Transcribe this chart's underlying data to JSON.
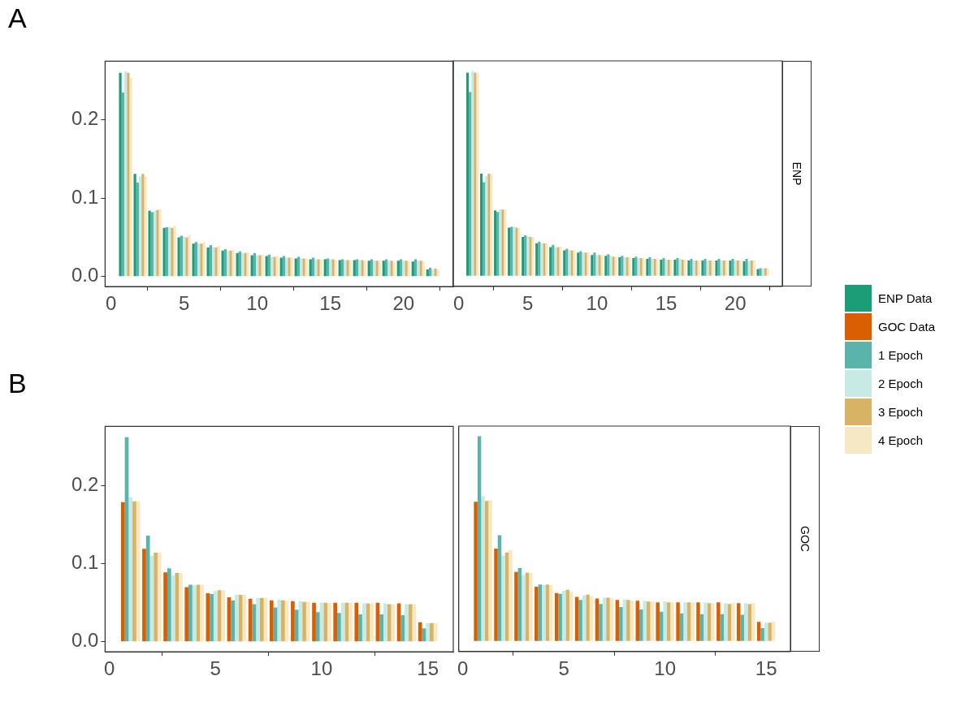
{
  "chart_data": [
    {
      "type": "bar",
      "annotations": [
        "A"
      ],
      "legend": "right",
      "x": [
        1,
        2,
        3,
        4,
        5,
        6,
        7,
        8,
        9,
        10,
        11,
        12,
        13,
        14,
        15,
        16,
        17,
        18,
        19,
        20,
        21,
        22
      ],
      "xlim": [
        -0.4,
        23.4
      ],
      "xticks": [
        0,
        5,
        10,
        15,
        20
      ],
      "ylim": [
        -0.013,
        0.275
      ],
      "yticks": [
        {
          "value": 0,
          "label": "0.0"
        },
        {
          "value": 0.1,
          "label": "0.1"
        },
        {
          "value": 0.2,
          "label": "0.2"
        }
      ],
      "grid": false,
      "series": [
        {
          "name": "ENP Data",
          "color": "#1b9e77",
          "values": [
            0.26,
            0.131,
            0.084,
            0.062,
            0.05,
            0.042,
            0.037,
            0.033,
            0.03,
            0.027,
            0.026,
            0.024,
            0.023,
            0.022,
            0.022,
            0.021,
            0.021,
            0.02,
            0.02,
            0.02,
            0.019,
            0.009
          ]
        },
        {
          "name": "1 Epoch",
          "color": "#5ab4ac",
          "values": [
            0.235,
            0.12,
            0.082,
            0.063,
            0.052,
            0.044,
            0.04,
            0.035,
            0.032,
            0.03,
            0.028,
            0.026,
            0.025,
            0.024,
            0.023,
            0.022,
            0.022,
            0.022,
            0.022,
            0.022,
            0.022,
            0.011
          ]
        },
        {
          "name": "2 Epoch",
          "color": "#c7eae5",
          "values": [
            0.262,
            0.128,
            0.084,
            0.063,
            0.051,
            0.042,
            0.037,
            0.033,
            0.03,
            0.027,
            0.025,
            0.024,
            0.023,
            0.022,
            0.022,
            0.021,
            0.021,
            0.02,
            0.02,
            0.02,
            0.02,
            0.009
          ]
        },
        {
          "name": "3 Epoch",
          "color": "#d8b365",
          "values": [
            0.26,
            0.131,
            0.085,
            0.062,
            0.05,
            0.042,
            0.037,
            0.033,
            0.03,
            0.027,
            0.025,
            0.024,
            0.023,
            0.022,
            0.022,
            0.021,
            0.021,
            0.02,
            0.02,
            0.02,
            0.02,
            0.01
          ]
        },
        {
          "name": "4 Epoch",
          "color": "#f6e8c3",
          "values": [
            0.254,
            0.128,
            0.086,
            0.065,
            0.053,
            0.044,
            0.039,
            0.034,
            0.031,
            0.028,
            0.026,
            0.024,
            0.023,
            0.022,
            0.021,
            0.021,
            0.02,
            0.02,
            0.019,
            0.019,
            0.019,
            0.009
          ]
        }
      ]
    },
    {
      "type": "bar",
      "annotations": [
        "ENP"
      ],
      "tick_labels": "x",
      "x": [
        1,
        2,
        3,
        4,
        5,
        6,
        7,
        8,
        9,
        10,
        11,
        12,
        13,
        14,
        15,
        16,
        17,
        18,
        19,
        20,
        21,
        22
      ],
      "xlim": [
        -0.4,
        23.4
      ],
      "xticks": [
        0,
        5,
        10,
        15,
        20
      ],
      "ylim": [
        -0.013,
        0.275
      ],
      "yticks": [
        {
          "value": 0,
          "label": "0.0"
        },
        {
          "value": 0.1,
          "label": "0.1"
        },
        {
          "value": 0.2,
          "label": "0.2"
        }
      ],
      "grid": false,
      "series": [
        {
          "name": "ENP Data",
          "color": "#1b9e77",
          "values": [
            0.26,
            0.131,
            0.084,
            0.062,
            0.05,
            0.042,
            0.037,
            0.033,
            0.03,
            0.027,
            0.026,
            0.024,
            0.023,
            0.022,
            0.021,
            0.021,
            0.02,
            0.02,
            0.02,
            0.02,
            0.019,
            0.009
          ]
        },
        {
          "name": "1 Epoch",
          "color": "#5ab4ac",
          "values": [
            0.235,
            0.12,
            0.082,
            0.063,
            0.052,
            0.044,
            0.04,
            0.035,
            0.032,
            0.03,
            0.028,
            0.026,
            0.025,
            0.024,
            0.023,
            0.023,
            0.022,
            0.022,
            0.022,
            0.022,
            0.022,
            0.01
          ]
        },
        {
          "name": "2 Epoch",
          "color": "#c7eae5",
          "values": [
            0.262,
            0.128,
            0.085,
            0.063,
            0.051,
            0.042,
            0.037,
            0.033,
            0.03,
            0.027,
            0.026,
            0.024,
            0.023,
            0.022,
            0.021,
            0.022,
            0.02,
            0.02,
            0.02,
            0.02,
            0.019,
            0.01
          ]
        },
        {
          "name": "3 Epoch",
          "color": "#d8b365",
          "values": [
            0.26,
            0.131,
            0.085,
            0.062,
            0.05,
            0.042,
            0.037,
            0.033,
            0.03,
            0.027,
            0.025,
            0.024,
            0.023,
            0.022,
            0.021,
            0.021,
            0.02,
            0.02,
            0.02,
            0.02,
            0.02,
            0.01
          ]
        },
        {
          "name": "4 Epoch",
          "color": "#f6e8c3",
          "values": [
            0.26,
            0.13,
            0.085,
            0.062,
            0.05,
            0.042,
            0.037,
            0.033,
            0.03,
            0.027,
            0.025,
            0.024,
            0.023,
            0.022,
            0.021,
            0.021,
            0.02,
            0.02,
            0.02,
            0.02,
            0.02,
            0.01
          ]
        }
      ]
    },
    {
      "type": "bar",
      "annotations": [
        "B"
      ],
      "legend": "right",
      "x": [
        1,
        2,
        3,
        4,
        5,
        6,
        7,
        8,
        9,
        10,
        11,
        12,
        13,
        14,
        15
      ],
      "xlim": [
        -0.2,
        16.2
      ],
      "xticks": [
        0,
        5,
        10,
        15
      ],
      "ylim": [
        -0.013,
        0.276
      ],
      "yticks": [
        {
          "value": 0,
          "label": "0.0"
        },
        {
          "value": 0.1,
          "label": "0.1"
        },
        {
          "value": 0.2,
          "label": "0.2"
        }
      ],
      "grid": false,
      "series": [
        {
          "name": "GOC Data",
          "color": "#d95f02",
          "values": [
            0.179,
            0.119,
            0.089,
            0.07,
            0.062,
            0.057,
            0.055,
            0.053,
            0.052,
            0.05,
            0.05,
            0.05,
            0.05,
            0.049,
            0.025
          ]
        },
        {
          "name": "1 Epoch",
          "color": "#5ab4ac",
          "values": [
            0.262,
            0.136,
            0.094,
            0.073,
            0.061,
            0.053,
            0.048,
            0.044,
            0.041,
            0.038,
            0.037,
            0.035,
            0.035,
            0.034,
            0.017
          ]
        },
        {
          "name": "2 Epoch",
          "color": "#c7eae5",
          "values": [
            0.185,
            0.11,
            0.085,
            0.072,
            0.065,
            0.06,
            0.056,
            0.054,
            0.052,
            0.05,
            0.05,
            0.049,
            0.049,
            0.048,
            0.024
          ]
        },
        {
          "name": "3 Epoch",
          "color": "#d8b365",
          "values": [
            0.18,
            0.114,
            0.088,
            0.073,
            0.066,
            0.06,
            0.056,
            0.053,
            0.051,
            0.05,
            0.05,
            0.049,
            0.048,
            0.048,
            0.024
          ]
        },
        {
          "name": "4 Epoch",
          "color": "#f6e8c3",
          "values": [
            0.18,
            0.114,
            0.088,
            0.073,
            0.066,
            0.06,
            0.056,
            0.053,
            0.051,
            0.05,
            0.05,
            0.049,
            0.048,
            0.048,
            0.024
          ]
        }
      ]
    },
    {
      "type": "bar",
      "annotations": [
        "GOC"
      ],
      "tick_labels": "x",
      "x": [
        1,
        2,
        3,
        4,
        5,
        6,
        7,
        8,
        9,
        10,
        11,
        12,
        13,
        14,
        15
      ],
      "xlim": [
        -0.2,
        16.2
      ],
      "xticks": [
        0,
        5,
        10,
        15
      ],
      "ylim": [
        -0.013,
        0.276
      ],
      "yticks": [
        {
          "value": 0,
          "label": "0.0"
        },
        {
          "value": 0.1,
          "label": "0.1"
        },
        {
          "value": 0.2,
          "label": "0.2"
        }
      ],
      "grid": false,
      "series": [
        {
          "name": "GOC Data",
          "color": "#d95f02",
          "values": [
            0.179,
            0.119,
            0.089,
            0.07,
            0.062,
            0.057,
            0.055,
            0.053,
            0.052,
            0.05,
            0.05,
            0.05,
            0.05,
            0.049,
            0.025
          ]
        },
        {
          "name": "1 Epoch",
          "color": "#5ab4ac",
          "values": [
            0.263,
            0.136,
            0.094,
            0.073,
            0.061,
            0.053,
            0.048,
            0.044,
            0.041,
            0.038,
            0.036,
            0.035,
            0.035,
            0.034,
            0.017
          ]
        },
        {
          "name": "2 Epoch",
          "color": "#c7eae5",
          "values": [
            0.186,
            0.11,
            0.085,
            0.072,
            0.065,
            0.059,
            0.056,
            0.054,
            0.052,
            0.051,
            0.05,
            0.05,
            0.049,
            0.049,
            0.024
          ]
        },
        {
          "name": "3 Epoch",
          "color": "#d8b365",
          "values": [
            0.18,
            0.114,
            0.088,
            0.073,
            0.066,
            0.06,
            0.056,
            0.053,
            0.051,
            0.05,
            0.05,
            0.049,
            0.048,
            0.048,
            0.024
          ]
        },
        {
          "name": "4 Epoch",
          "color": "#f6e8c3",
          "values": [
            0.181,
            0.117,
            0.088,
            0.072,
            0.064,
            0.058,
            0.055,
            0.052,
            0.051,
            0.05,
            0.05,
            0.049,
            0.049,
            0.049,
            0.025
          ]
        }
      ]
    }
  ]
}
